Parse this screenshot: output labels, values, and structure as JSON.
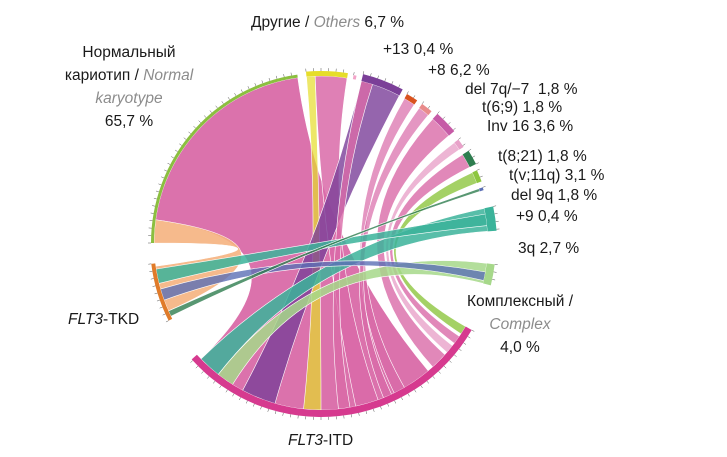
{
  "groups": [
    {
      "id": "others",
      "ru": "Другие",
      "en": "Others",
      "value": "6,7 %",
      "color": "#e6dd2a"
    },
    {
      "id": "plus13",
      "label": "+13",
      "value": "0,4 %",
      "color": "#f2a3c8"
    },
    {
      "id": "plus8",
      "label": "+8",
      "value": "6,2 %",
      "color": "#7b3f98"
    },
    {
      "id": "del7q",
      "label": "del 7q/−7",
      "value": "1,8 %",
      "color": "#d9531e"
    },
    {
      "id": "t69",
      "label": "t(6;9)",
      "value": "1,8 %",
      "color": "#e98b8b"
    },
    {
      "id": "inv16",
      "label": "Inv 16",
      "value": "3,6 %",
      "color": "#c65aa6"
    },
    {
      "id": "t821",
      "label": "t(8;21)",
      "value": "1,8 %",
      "color": "#e8a2c9"
    },
    {
      "id": "tv11q",
      "label": "t(v;11q)",
      "value": "3,1 %",
      "color": "#2e7d4f"
    },
    {
      "id": "del9q",
      "label": "del 9q",
      "value": "1,8 %",
      "color": "#8dc63f"
    },
    {
      "id": "plus9",
      "label": "+9",
      "value": "0,4 %",
      "color": "#5b6fb5"
    },
    {
      "id": "q3",
      "label": "3q",
      "value": "2,7 %",
      "color": "#3bb39a"
    },
    {
      "id": "complex",
      "ru": "Комплексный /",
      "en": "Complex",
      "value": "4,0 %",
      "color": "#a6d88a"
    },
    {
      "id": "flt3itd",
      "label_it": "FLT3",
      "label_rest": "-ITD",
      "color": "#d63a8f"
    },
    {
      "id": "flt3tkd",
      "label_it": "FLT3",
      "label_rest": "-TKD",
      "color": "#e07b2a"
    },
    {
      "id": "normal",
      "ru1": "Нормальный",
      "ru2": "кариотип /",
      "en1": "Normal",
      "en2": "karyotype",
      "value": "65,7 %",
      "color": "#8bbf3f"
    }
  ],
  "ribbon_colors": {
    "normal_itd": "#d96aa8",
    "normal_tkd": "#f5b27f",
    "tkd": "#f7a35c"
  }
}
